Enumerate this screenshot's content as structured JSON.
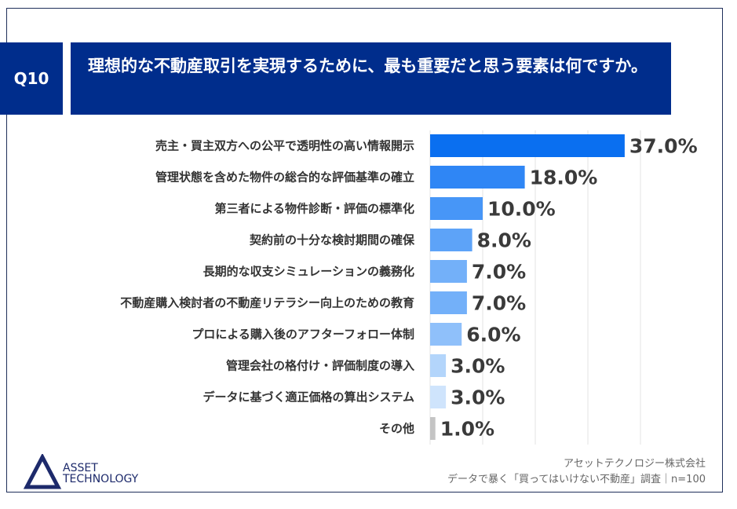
{
  "header": {
    "question_no": "Q10",
    "title": "理想的な不動産取引を実現するために、最も重要だと思う要素は何ですか。"
  },
  "chart_data": {
    "type": "bar",
    "orientation": "horizontal",
    "categories": [
      "売主・買主双方への公平で透明性の高い情報開示",
      "管理状態を含めた物件の総合的な評価基準の確立",
      "第三者による物件診断・評価の標準化",
      "契約前の十分な検討期間の確保",
      "長期的な収支シミュレーションの義務化",
      "不動産購入検討者の不動産リテラシー向上のための教育",
      "プロによる購入後のアフターフォロー体制",
      "管理会社の格付け・評価制度の導入",
      "データに基づく適正価格の算出システム",
      "その他"
    ],
    "values": [
      37.0,
      18.0,
      10.0,
      8.0,
      7.0,
      7.0,
      6.0,
      3.0,
      3.0,
      1.0
    ],
    "labels": [
      "37.0%",
      "18.0%",
      "10.0%",
      "8.0%",
      "7.0%",
      "7.0%",
      "6.0%",
      "3.0%",
      "3.0%",
      "1.0%"
    ],
    "colors": [
      "#0a6ff0",
      "#2f86f5",
      "#4796f7",
      "#5da3f8",
      "#73b0f9",
      "#73b0f9",
      "#8fc0fa",
      "#b3d5fb",
      "#cfe4fc",
      "#c4c4c4"
    ],
    "xlim": [
      0,
      40
    ],
    "grid": true,
    "unit": "%"
  },
  "footer": {
    "company": "アセットテクノロジー株式会社",
    "source": "データで暴く「買ってはいけない不動産」調査｜n=100",
    "logo_line1": "ASSET",
    "logo_line2": "TECHNOLOGY",
    "logo_color": "#1d2a6b"
  }
}
